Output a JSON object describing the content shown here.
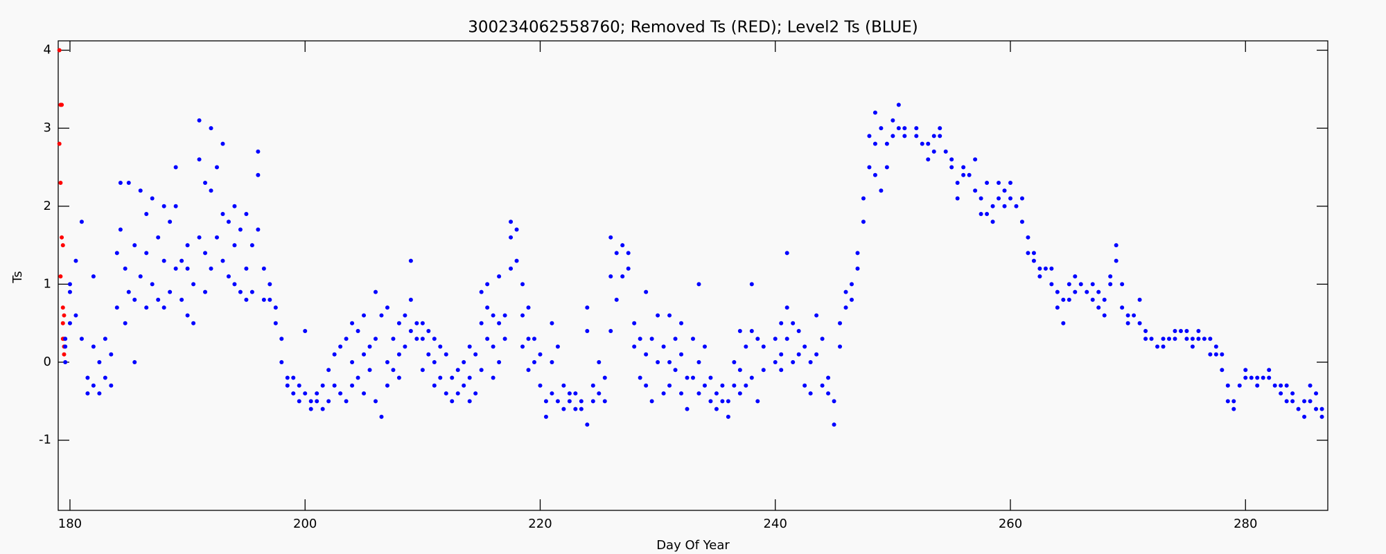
{
  "chart_data": {
    "type": "scatter",
    "title": "300234062558760; Removed Ts (RED); Level2 Ts (BLUE)",
    "x_label": "Day Of Year",
    "y_label": "Ts",
    "xlim": [
      179,
      287
    ],
    "ylim": [
      -1.9,
      4.12
    ],
    "xticks": [
      180,
      200,
      220,
      240,
      260,
      280
    ],
    "yticks": [
      -1,
      0,
      1,
      2,
      3,
      4
    ],
    "grid": false,
    "series": [
      {
        "color": "#ff0000",
        "x": [
          179.1,
          179.2,
          179.3,
          179.1,
          179.2,
          179.3,
          179.4,
          179.2,
          179.4,
          179.5,
          179.4,
          179.5,
          179.4,
          179.5,
          179.5
        ],
        "values": [
          4.0,
          3.3,
          3.3,
          2.8,
          2.3,
          1.6,
          1.5,
          1.1,
          0.7,
          0.6,
          0.5,
          0.3,
          0.3,
          0.2,
          0.1
        ]
      },
      {
        "color": "#0000ff",
        "x": [
          179.6,
          179.6,
          179.6,
          180,
          180,
          180,
          180.5,
          180.5,
          181,
          181,
          181.5,
          181.5,
          182,
          182,
          182,
          182.5,
          182.5,
          183,
          183,
          183.5,
          183.5,
          184,
          184,
          184.3,
          184.3,
          184.7,
          184.7,
          185,
          185,
          185.5,
          185.5,
          185.5,
          186,
          186,
          186.5,
          186.5,
          186.5,
          187,
          187,
          187.5,
          187.5,
          188,
          188,
          188,
          188.5,
          188.5,
          189,
          189,
          189,
          189.5,
          189.5,
          190,
          190,
          190,
          190.5,
          190.5,
          191,
          191,
          191,
          191.5,
          191.5,
          191.5,
          192,
          192,
          192,
          192.5,
          192.5,
          193,
          193,
          193,
          193.5,
          193.5,
          194,
          194,
          194,
          194.5,
          194.5,
          195,
          195,
          195,
          195.5,
          195.5,
          196,
          196,
          196,
          196.5,
          196.5,
          197,
          197,
          197.5,
          197.5,
          198,
          198,
          198.5,
          198.5,
          199,
          199,
          199.5,
          199.5,
          200,
          200,
          200.5,
          200.5,
          201,
          201,
          201.5,
          201.5,
          202,
          202,
          202.5,
          202.5,
          203,
          203,
          203.5,
          203.5,
          204,
          204,
          204,
          204.5,
          204.5,
          205,
          205,
          205,
          205.5,
          205.5,
          206,
          206,
          206,
          206.5,
          206.5,
          207,
          207,
          207,
          207.5,
          207.5,
          208,
          208,
          208,
          208.5,
          208.5,
          209,
          209,
          209,
          209.5,
          209.5,
          210,
          210,
          210,
          210.5,
          210.5,
          211,
          211,
          211,
          211.5,
          211.5,
          212,
          212,
          212.5,
          212.5,
          213,
          213,
          213.5,
          213.5,
          214,
          214,
          214,
          214.5,
          214.5,
          215,
          215,
          215,
          215.5,
          215.5,
          215.5,
          216,
          216,
          216,
          216.5,
          216.5,
          216.5,
          217,
          217,
          217.5,
          217.5,
          217.5,
          218,
          218,
          218.5,
          218.5,
          218.5,
          219,
          219,
          219,
          219.5,
          219.5,
          220,
          220,
          220.5,
          220.5,
          221,
          221,
          221,
          221.5,
          221.5,
          222,
          222,
          222.5,
          222.5,
          223,
          223,
          223.5,
          223.5,
          224,
          224,
          224,
          224.5,
          224.5,
          225,
          225,
          225.5,
          225.5,
          226,
          226,
          226,
          226.5,
          226.5,
          227,
          227,
          227.5,
          227.5,
          228,
          228,
          228.5,
          228.5,
          229,
          229,
          229,
          229.5,
          229.5,
          230,
          230,
          230.5,
          230.5,
          231,
          231,
          231,
          231.5,
          231.5,
          232,
          232,
          232,
          232.5,
          232.5,
          233,
          233,
          233.5,
          233.5,
          233.5,
          234,
          234,
          234.5,
          234.5,
          235,
          235,
          235.5,
          235.5,
          236,
          236,
          236.5,
          236.5,
          237,
          237,
          237,
          237.5,
          237.5,
          238,
          238,
          238,
          238.5,
          238.5,
          239,
          239,
          240,
          240,
          240.5,
          240.5,
          240.5,
          241,
          241,
          241,
          241.5,
          241.5,
          242,
          242,
          242.5,
          242.5,
          243,
          243,
          243.5,
          243.5,
          244,
          244,
          244.5,
          244.5,
          245,
          245,
          245.5,
          245.5,
          246,
          246,
          246.5,
          246.5,
          247,
          247,
          247.5,
          247.5,
          248,
          248,
          248.5,
          248.5,
          248.5,
          249,
          249,
          249.5,
          249.5,
          250,
          250,
          250.5,
          250.5,
          251,
          251,
          252,
          252,
          252.5,
          253,
          253,
          253.5,
          253.5,
          254,
          254,
          254.5,
          255,
          255,
          255.5,
          255.5,
          256,
          256,
          256.5,
          257,
          257,
          257.5,
          257.5,
          258,
          258,
          258.5,
          258.5,
          259,
          259,
          259.5,
          259.5,
          260,
          260,
          260.5,
          261,
          261,
          261.5,
          261.5,
          262,
          262,
          262.5,
          262.5,
          263,
          263.5,
          263.5,
          264,
          264,
          264.5,
          264.5,
          265,
          265,
          265.5,
          265.5,
          266,
          266.5,
          267,
          267,
          267.5,
          267.5,
          268,
          268,
          268.5,
          268.5,
          269,
          269,
          269.5,
          269.5,
          270,
          270,
          270.5,
          271,
          271,
          271.5,
          271.5,
          272,
          272.5,
          273,
          273,
          273.5,
          274,
          274,
          274.5,
          275,
          275,
          275.5,
          275.5,
          276,
          276,
          276.5,
          277,
          277,
          277.5,
          277.5,
          278,
          278,
          278.5,
          278.5,
          279,
          279,
          279.5,
          280,
          280,
          280.5,
          281,
          281,
          281.5,
          282,
          282,
          282.5,
          283,
          283,
          283.5,
          283.5,
          284,
          284,
          284.5,
          285,
          285,
          285.5,
          285.5,
          286,
          286,
          286.5,
          286.5
        ],
        "values": [
          0.2,
          0.3,
          0.0,
          0.5,
          0.9,
          1.0,
          1.3,
          0.6,
          1.8,
          0.3,
          -0.2,
          -0.4,
          1.1,
          0.2,
          -0.3,
          0.0,
          -0.4,
          0.3,
          -0.2,
          0.1,
          -0.3,
          0.7,
          1.4,
          2.3,
          1.7,
          0.5,
          1.2,
          2.3,
          0.9,
          0.0,
          1.5,
          0.8,
          2.2,
          1.1,
          1.9,
          0.7,
          1.4,
          2.1,
          1.0,
          0.8,
          1.6,
          2.0,
          1.3,
          0.7,
          1.8,
          0.9,
          2.5,
          2.0,
          1.2,
          0.8,
          1.3,
          1.2,
          0.6,
          1.5,
          0.5,
          1.0,
          3.1,
          2.6,
          1.6,
          2.3,
          0.9,
          1.4,
          3.0,
          2.2,
          1.2,
          2.5,
          1.6,
          2.8,
          1.9,
          1.3,
          1.8,
          1.1,
          2.0,
          1.5,
          1.0,
          1.7,
          0.9,
          1.9,
          1.2,
          0.8,
          1.5,
          0.9,
          2.7,
          2.4,
          1.7,
          1.2,
          0.8,
          1.0,
          0.8,
          0.7,
          0.5,
          0.3,
          0.0,
          -0.2,
          -0.3,
          -0.4,
          -0.2,
          -0.5,
          -0.3,
          0.4,
          -0.4,
          -0.5,
          -0.6,
          -0.5,
          -0.4,
          -0.3,
          -0.6,
          -0.1,
          -0.5,
          0.1,
          -0.3,
          0.2,
          -0.4,
          0.3,
          -0.5,
          0.5,
          0.0,
          -0.3,
          0.4,
          -0.2,
          0.6,
          0.1,
          -0.4,
          0.2,
          -0.1,
          0.9,
          0.3,
          -0.5,
          0.6,
          -0.7,
          0.7,
          0.0,
          -0.3,
          -0.1,
          0.3,
          0.5,
          0.1,
          -0.2,
          0.6,
          0.2,
          1.3,
          0.8,
          0.4,
          0.5,
          0.3,
          0.5,
          0.3,
          -0.1,
          0.4,
          0.1,
          0.3,
          0.0,
          -0.3,
          0.2,
          -0.2,
          0.1,
          -0.4,
          -0.2,
          -0.5,
          -0.1,
          -0.4,
          0.0,
          -0.3,
          0.2,
          -0.2,
          -0.5,
          0.1,
          -0.4,
          0.9,
          0.5,
          -0.1,
          1.0,
          0.7,
          0.3,
          0.6,
          0.2,
          -0.2,
          1.1,
          0.5,
          0.0,
          0.6,
          0.3,
          1.8,
          1.6,
          1.2,
          1.7,
          1.3,
          1.0,
          0.6,
          0.2,
          0.7,
          0.3,
          -0.1,
          0.3,
          0.0,
          0.1,
          -0.3,
          -0.5,
          -0.7,
          0.5,
          0.0,
          -0.4,
          0.2,
          -0.5,
          -0.3,
          -0.6,
          -0.4,
          -0.5,
          -0.4,
          -0.6,
          -0.5,
          -0.6,
          0.7,
          0.4,
          -0.8,
          -0.5,
          -0.3,
          0.0,
          -0.4,
          -0.2,
          -0.5,
          0.4,
          1.1,
          1.6,
          1.4,
          0.8,
          1.5,
          1.1,
          1.2,
          1.4,
          0.5,
          0.2,
          -0.2,
          0.3,
          0.9,
          0.1,
          -0.3,
          0.3,
          -0.5,
          0.6,
          0.0,
          0.2,
          -0.4,
          0.6,
          0.0,
          -0.3,
          0.3,
          -0.1,
          0.5,
          0.1,
          -0.4,
          -0.2,
          -0.6,
          0.3,
          -0.2,
          1.0,
          0.0,
          -0.4,
          0.2,
          -0.3,
          -0.2,
          -0.5,
          -0.4,
          -0.6,
          -0.3,
          -0.5,
          -0.5,
          -0.7,
          0.0,
          -0.3,
          0.4,
          -0.1,
          -0.4,
          0.2,
          -0.3,
          1.0,
          0.4,
          -0.2,
          0.3,
          -0.5,
          0.2,
          -0.1,
          0.3,
          0.0,
          0.5,
          0.1,
          -0.1,
          1.4,
          0.7,
          0.3,
          0.5,
          0.0,
          0.4,
          0.1,
          0.2,
          -0.3,
          0.0,
          -0.4,
          0.6,
          0.1,
          0.3,
          -0.3,
          -0.2,
          -0.4,
          -0.5,
          -0.8,
          0.2,
          0.5,
          0.9,
          0.7,
          1.0,
          0.8,
          1.2,
          1.4,
          1.8,
          2.1,
          2.5,
          2.9,
          3.2,
          2.8,
          2.4,
          3.0,
          2.2,
          2.8,
          2.5,
          3.1,
          2.9,
          3.3,
          3.0,
          3.0,
          2.9,
          3.0,
          2.9,
          2.8,
          2.6,
          2.8,
          2.9,
          2.7,
          3.0,
          2.9,
          2.7,
          2.6,
          2.5,
          2.3,
          2.1,
          2.5,
          2.4,
          2.4,
          2.6,
          2.2,
          1.9,
          2.1,
          1.9,
          2.3,
          2.0,
          1.8,
          2.3,
          2.1,
          2.2,
          2.0,
          2.3,
          2.1,
          2.0,
          2.1,
          1.8,
          1.6,
          1.4,
          1.4,
          1.3,
          1.1,
          1.2,
          1.2,
          1.2,
          1.0,
          0.7,
          0.9,
          0.5,
          0.8,
          0.8,
          1.0,
          0.9,
          1.1,
          1.0,
          0.9,
          1.0,
          0.8,
          0.7,
          0.9,
          0.6,
          0.8,
          1.0,
          1.1,
          1.5,
          1.3,
          1.0,
          0.7,
          0.6,
          0.5,
          0.6,
          0.8,
          0.5,
          0.3,
          0.4,
          0.3,
          0.2,
          0.3,
          0.2,
          0.3,
          0.4,
          0.3,
          0.4,
          0.3,
          0.4,
          0.3,
          0.2,
          0.4,
          0.3,
          0.3,
          0.3,
          0.1,
          0.2,
          0.1,
          0.1,
          -0.1,
          -0.3,
          -0.5,
          -0.6,
          -0.5,
          -0.3,
          -0.1,
          -0.2,
          -0.2,
          -0.2,
          -0.3,
          -0.2,
          -0.1,
          -0.2,
          -0.3,
          -0.3,
          -0.4,
          -0.5,
          -0.3,
          -0.5,
          -0.4,
          -0.6,
          -0.5,
          -0.7,
          -0.3,
          -0.5,
          -0.6,
          -0.4,
          -0.6,
          -0.7
        ]
      }
    ]
  }
}
